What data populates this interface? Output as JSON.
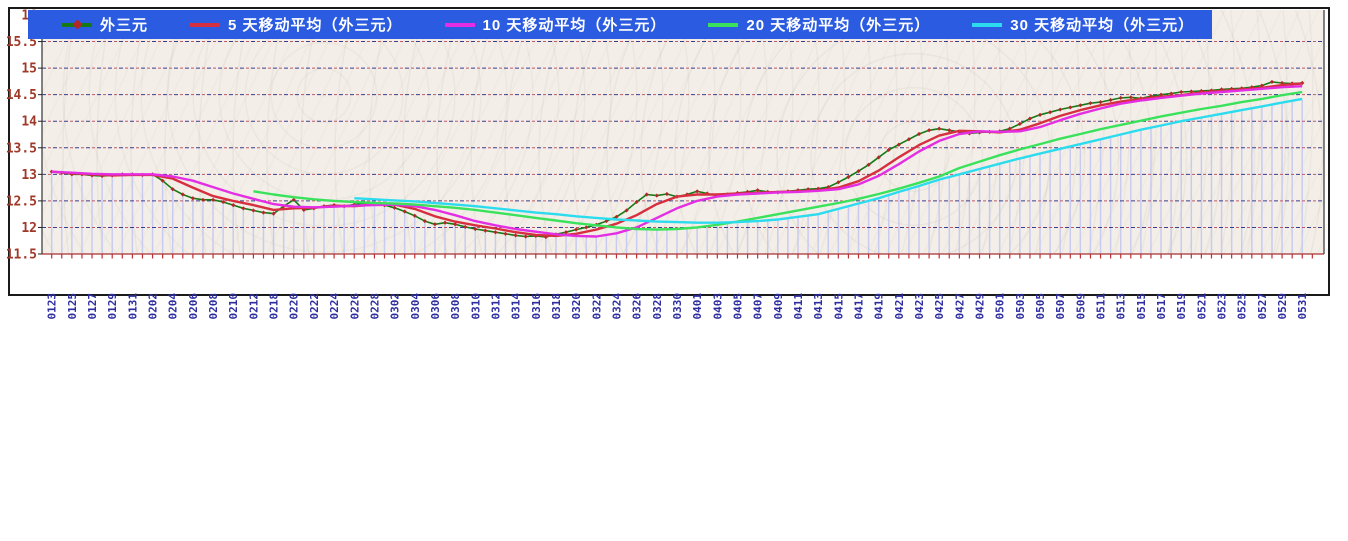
{
  "figure": {
    "outside_bg": "#ffffff",
    "plot_bg": "#f3efe8",
    "border_color": "#1a1a1a",
    "dropline_color": "#c8cbf0",
    "gridline_color": "#3a3a8e",
    "gridline_accent_color": "#c2566a",
    "axis_line_color": "#a83030"
  },
  "legend": {
    "bg": "#2b5be0",
    "text_color": "#ffffff"
  },
  "axes": {
    "y": {
      "min": 11.5,
      "max": 16,
      "tick_step": 0.5,
      "tick_labels": [
        "16",
        "15.5",
        "15",
        "14.5",
        "14",
        "13.5",
        "13",
        "12.5",
        "12",
        "11.5"
      ],
      "label_color": "#a03828"
    },
    "x": {
      "label_every": 2,
      "label_color": "#2d2da0",
      "tick_color": "#c03030"
    }
  },
  "chart_data": {
    "type": "line",
    "title": "",
    "ylim": [
      11.5,
      16
    ],
    "grid": true,
    "legend_position": "top",
    "x_tick_labels": [
      "0123",
      "0125",
      "0127",
      "0129",
      "0131",
      "0202",
      "0204",
      "0206",
      "0208",
      "0210",
      "0212",
      "0218",
      "0220",
      "0222",
      "0224",
      "0226",
      "0228",
      "0302",
      "0304",
      "0306",
      "0308",
      "0310",
      "0312",
      "0314",
      "0316",
      "0318",
      "0320",
      "0322",
      "0324",
      "0326",
      "0328",
      "0330",
      "0401",
      "0403",
      "0405",
      "0407",
      "0409",
      "0411",
      "0413",
      "0415",
      "0417",
      "0419",
      "0421",
      "0423",
      "0425",
      "0427",
      "0429",
      "0501",
      "0503",
      "0505",
      "0507",
      "0509",
      "0511",
      "0513",
      "0515",
      "0517",
      "0519",
      "0521",
      "0523",
      "0525",
      "0527",
      "0529",
      "0531"
    ],
    "points_per_label": 2,
    "series": [
      {
        "name": "外三元",
        "color": "#157a15",
        "marker_color": "#b22828",
        "x_start": 0,
        "x_step": 1,
        "values": [
          13.05,
          13.03,
          13.0,
          13.0,
          12.98,
          12.97,
          12.98,
          13.0,
          13.0,
          12.99,
          13.0,
          12.88,
          12.72,
          12.62,
          12.55,
          12.52,
          12.52,
          12.48,
          12.42,
          12.36,
          12.32,
          12.28,
          12.26,
          12.4,
          12.52,
          12.33,
          12.36,
          12.4,
          12.42,
          12.4,
          12.43,
          12.46,
          12.45,
          12.42,
          12.37,
          12.3,
          12.22,
          12.12,
          12.06,
          12.09,
          12.06,
          12.01,
          11.97,
          11.94,
          11.91,
          11.88,
          11.85,
          11.83,
          11.84,
          11.82,
          11.87,
          11.91,
          11.96,
          12.0,
          12.05,
          12.12,
          12.2,
          12.32,
          12.48,
          12.62,
          12.6,
          12.63,
          12.58,
          12.62,
          12.68,
          12.64,
          12.6,
          12.62,
          12.65,
          12.67,
          12.7,
          12.67,
          12.66,
          12.68,
          12.7,
          12.72,
          12.73,
          12.76,
          12.85,
          12.95,
          13.06,
          13.18,
          13.32,
          13.46,
          13.56,
          13.66,
          13.76,
          13.83,
          13.86,
          13.83,
          13.8,
          13.77,
          13.79,
          13.8,
          13.81,
          13.86,
          13.95,
          14.05,
          14.12,
          14.17,
          14.22,
          14.26,
          14.3,
          14.34,
          14.36,
          14.4,
          14.44,
          14.45,
          14.43,
          14.47,
          14.5,
          14.52,
          14.55,
          14.56,
          14.57,
          14.58,
          14.6,
          14.61,
          14.62,
          14.64,
          14.67,
          14.74,
          14.72,
          14.71,
          14.72
        ]
      },
      {
        "name": "5 天移动平均（外三元）",
        "color": "#d62f3f",
        "x_start": 0,
        "x_step": 2,
        "values": [
          13.05,
          13.02,
          13.0,
          12.98,
          12.99,
          12.99,
          12.92,
          12.75,
          12.59,
          12.5,
          12.42,
          12.33,
          12.36,
          12.37,
          12.41,
          12.4,
          12.43,
          12.43,
          12.35,
          12.21,
          12.11,
          12.04,
          11.98,
          11.91,
          11.86,
          11.84,
          11.88,
          11.96,
          12.07,
          12.23,
          12.44,
          12.58,
          12.62,
          12.62,
          12.64,
          12.65,
          12.67,
          12.68,
          12.7,
          12.75,
          12.87,
          13.07,
          13.32,
          13.55,
          13.73,
          13.82,
          13.81,
          13.79,
          13.84,
          13.96,
          14.1,
          14.21,
          14.3,
          14.37,
          14.42,
          14.46,
          14.49,
          14.54,
          14.57,
          14.6,
          14.63,
          14.68,
          14.71
        ]
      },
      {
        "name": "10 天移动平均（外三元）",
        "color": "#e32ee3",
        "x_start": 0,
        "x_step": 2,
        "values": [
          13.05,
          13.03,
          13.01,
          13.0,
          13.0,
          13.0,
          12.96,
          12.88,
          12.76,
          12.64,
          12.54,
          12.44,
          12.39,
          12.38,
          12.39,
          12.41,
          12.42,
          12.43,
          12.4,
          12.33,
          12.23,
          12.12,
          12.04,
          11.97,
          11.92,
          11.87,
          11.84,
          11.83,
          11.89,
          12.0,
          12.18,
          12.36,
          12.5,
          12.58,
          12.62,
          12.64,
          12.66,
          12.67,
          12.69,
          12.72,
          12.81,
          12.97,
          13.19,
          13.43,
          13.63,
          13.76,
          13.81,
          13.8,
          13.81,
          13.89,
          14.02,
          14.14,
          14.24,
          14.33,
          14.39,
          14.44,
          14.48,
          14.52,
          14.55,
          14.58,
          14.61,
          14.64,
          14.66
        ]
      },
      {
        "name": "20 天移动平均（外三元）",
        "color": "#3ae25c",
        "x_start": 20,
        "x_step": 2,
        "values": [
          12.68,
          12.62,
          12.57,
          12.53,
          12.5,
          12.48,
          12.46,
          12.45,
          12.43,
          12.4,
          12.37,
          12.33,
          12.28,
          12.23,
          12.18,
          12.13,
          12.08,
          12.04,
          12.0,
          11.97,
          11.96,
          11.97,
          12.0,
          12.05,
          12.11,
          12.18,
          12.25,
          12.32,
          12.39,
          12.46,
          12.54,
          12.63,
          12.73,
          12.84,
          12.96,
          13.12,
          13.24,
          13.36,
          13.47,
          13.57,
          13.67,
          13.76,
          13.85,
          13.93,
          14.01,
          14.09,
          14.16,
          14.23,
          14.29,
          14.36,
          14.42,
          14.49,
          14.55
        ]
      },
      {
        "name": "30 天移动平均（外三元）",
        "color": "#2cdcee",
        "x_start": 30,
        "x_step": 2,
        "values": [
          12.55,
          12.53,
          12.51,
          12.49,
          12.46,
          12.43,
          12.4,
          12.36,
          12.32,
          12.28,
          12.25,
          12.21,
          12.18,
          12.15,
          12.13,
          12.11,
          12.1,
          12.09,
          12.09,
          12.1,
          12.12,
          12.15,
          12.2,
          12.25,
          12.35,
          12.45,
          12.55,
          12.67,
          12.78,
          12.9,
          13.0,
          13.1,
          13.2,
          13.3,
          13.39,
          13.48,
          13.57,
          13.66,
          13.75,
          13.84,
          13.92,
          14.0,
          14.07,
          14.14,
          14.21,
          14.28,
          14.35,
          14.42
        ]
      }
    ]
  }
}
